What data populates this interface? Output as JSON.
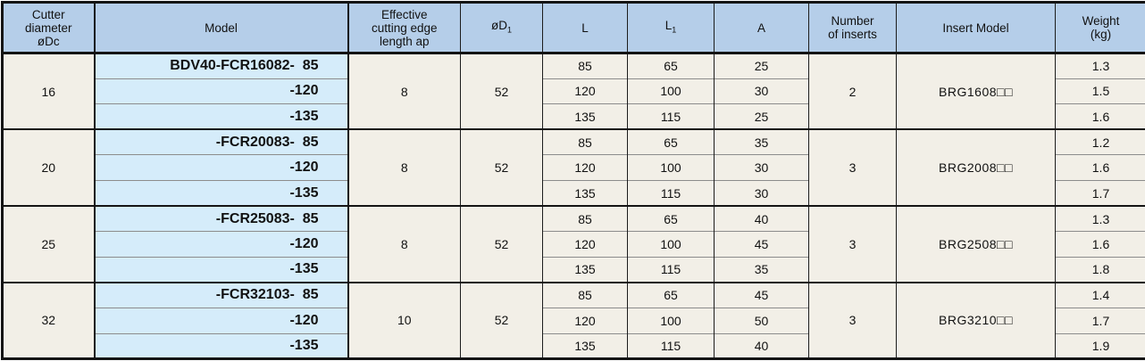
{
  "colors": {
    "header_bg": "#b5cee9",
    "model_bg": "#d5ecfa",
    "cell_bg": "#f2efe7",
    "border_dark": "#141414",
    "border_gray": "#8c8c8c"
  },
  "header": {
    "cutter_diameter": "Cutter\ndiameter\nøDc",
    "model": "Model",
    "effective": "Effective\ncutting edge\nlength ap",
    "d1": {
      "main": "øD",
      "sub": "1"
    },
    "l": "L",
    "l1": {
      "main": "L",
      "sub": "1"
    },
    "a": "A",
    "inserts": "Number\nof inserts",
    "insert_model": "Insert Model",
    "weight": "Weight\n(kg)"
  },
  "groups": [
    {
      "dc": "16",
      "ap": "8",
      "d1": "52",
      "inserts": "2",
      "insert_model": "BRG1608□□",
      "rows": [
        {
          "model": "BDV40-FCR16082-  85",
          "L": "85",
          "L1": "65",
          "A": "25",
          "weight": "1.3"
        },
        {
          "model": "-120",
          "L": "120",
          "L1": "100",
          "A": "30",
          "weight": "1.5"
        },
        {
          "model": "-135",
          "L": "135",
          "L1": "115",
          "A": "25",
          "weight": "1.6"
        }
      ]
    },
    {
      "dc": "20",
      "ap": "8",
      "d1": "52",
      "inserts": "3",
      "insert_model": "BRG2008□□",
      "rows": [
        {
          "model": "-FCR20083-  85",
          "L": "85",
          "L1": "65",
          "A": "35",
          "weight": "1.2"
        },
        {
          "model": "-120",
          "L": "120",
          "L1": "100",
          "A": "30",
          "weight": "1.6"
        },
        {
          "model": "-135",
          "L": "135",
          "L1": "115",
          "A": "30",
          "weight": "1.7"
        }
      ]
    },
    {
      "dc": "25",
      "ap": "8",
      "d1": "52",
      "inserts": "3",
      "insert_model": "BRG2508□□",
      "rows": [
        {
          "model": "-FCR25083-  85",
          "L": "85",
          "L1": "65",
          "A": "40",
          "weight": "1.3"
        },
        {
          "model": "-120",
          "L": "120",
          "L1": "100",
          "A": "45",
          "weight": "1.6"
        },
        {
          "model": "-135",
          "L": "135",
          "L1": "115",
          "A": "35",
          "weight": "1.8"
        }
      ]
    },
    {
      "dc": "32",
      "ap": "10",
      "d1": "52",
      "inserts": "3",
      "insert_model": "BRG3210□□",
      "rows": [
        {
          "model": "-FCR32103-  85",
          "L": "85",
          "L1": "65",
          "A": "45",
          "weight": "1.4"
        },
        {
          "model": "-120",
          "L": "120",
          "L1": "100",
          "A": "50",
          "weight": "1.7"
        },
        {
          "model": "-135",
          "L": "135",
          "L1": "115",
          "A": "40",
          "weight": "1.9"
        }
      ]
    }
  ]
}
